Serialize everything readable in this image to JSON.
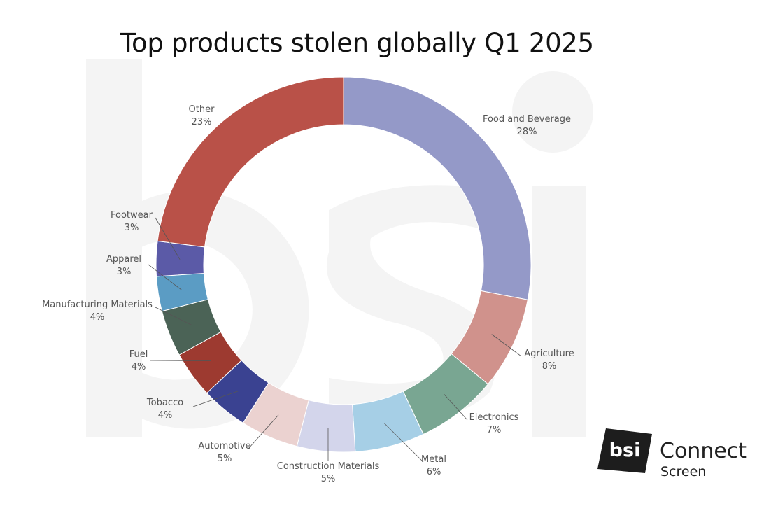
{
  "page": {
    "title": "Top products stolen globally Q1 2025"
  },
  "chart_data": {
    "type": "pie",
    "variant": "donut",
    "title": "Top products stolen globally Q1 2025",
    "slices": [
      {
        "label": "Food and Beverage",
        "value": 28,
        "value_label": "28%",
        "color": "#9499c8"
      },
      {
        "label": "Agriculture",
        "value": 8,
        "value_label": "8%",
        "color": "#d0928c"
      },
      {
        "label": "Electronics",
        "value": 7,
        "value_label": "7%",
        "color": "#79a692"
      },
      {
        "label": "Metal",
        "value": 6,
        "value_label": "6%",
        "color": "#a6cfe6"
      },
      {
        "label": "Construction Materials",
        "value": 5,
        "value_label": "5%",
        "color": "#d3d5eb"
      },
      {
        "label": "Automotive",
        "value": 5,
        "value_label": "5%",
        "color": "#ebd2d0"
      },
      {
        "label": "Tobacco",
        "value": 4,
        "value_label": "4%",
        "color": "#3a4291"
      },
      {
        "label": "Fuel",
        "value": 4,
        "value_label": "4%",
        "color": "#9d3a30"
      },
      {
        "label": "Manufacturing Materials",
        "value": 4,
        "value_label": "4%",
        "color": "#4b6356"
      },
      {
        "label": "Apparel",
        "value": 3,
        "value_label": "3%",
        "color": "#5b9cc4"
      },
      {
        "label": "Footwear",
        "value": 3,
        "value_label": "3%",
        "color": "#5b5aa7"
      },
      {
        "label": "Other",
        "value": 23,
        "value_label": "23%",
        "color": "#b95148"
      }
    ]
  },
  "logo": {
    "mark": "bsi",
    "name": "Connect",
    "sub": "Screen"
  }
}
